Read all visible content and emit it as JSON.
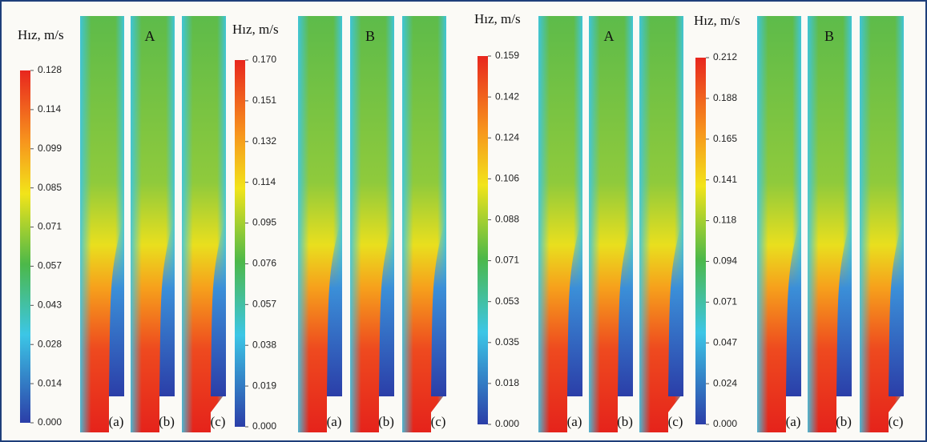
{
  "panels": [
    {
      "colorbar": {
        "title": "Hız, m/s",
        "ticks": [
          "0.128",
          "0.114",
          "0.099",
          "0.085",
          "0.071",
          "0.057",
          "0.043",
          "0.028",
          "0.014",
          "0.000"
        ]
      },
      "label": "A",
      "columns": [
        "(a)",
        "(b)",
        "(c)"
      ]
    },
    {
      "colorbar": {
        "title": "Hız, m/s",
        "ticks": [
          "0.170",
          "0.151",
          "0.132",
          "0.114",
          "0.095",
          "0.076",
          "0.057",
          "0.038",
          "0.019",
          "0.000"
        ]
      },
      "label": "B",
      "columns": [
        "(a)",
        "(b)",
        "(c)"
      ]
    },
    {
      "colorbar": {
        "title": "Hız, m/s",
        "ticks": [
          "0.159",
          "0.142",
          "0.124",
          "0.106",
          "0.088",
          "0.071",
          "0.053",
          "0.035",
          "0.018",
          "0.000"
        ]
      },
      "label": "A",
      "columns": [
        "(a)",
        "(b)",
        "(c)"
      ]
    },
    {
      "colorbar": {
        "title": "Hız, m/s",
        "ticks": [
          "0.212",
          "0.188",
          "0.165",
          "0.141",
          "0.118",
          "0.094",
          "0.071",
          "0.047",
          "0.024",
          "0.000"
        ]
      },
      "label": "B",
      "columns": [
        "(a)",
        "(b)",
        "(c)"
      ]
    }
  ]
}
